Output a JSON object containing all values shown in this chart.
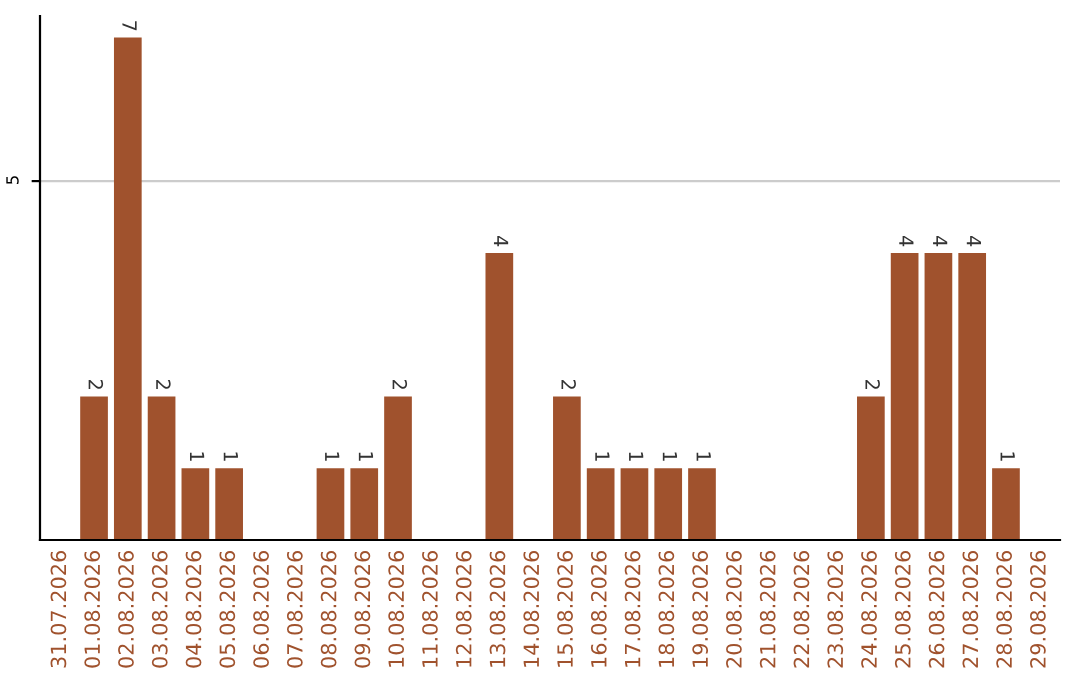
{
  "chart_data": {
    "type": "bar",
    "categories": [
      "31.07.2026",
      "01.08.2026",
      "02.08.2026",
      "03.08.2026",
      "04.08.2026",
      "05.08.2026",
      "06.08.2026",
      "07.08.2026",
      "08.08.2026",
      "09.08.2026",
      "10.08.2026",
      "11.08.2026",
      "12.08.2026",
      "13.08.2026",
      "14.08.2026",
      "15.08.2026",
      "16.08.2026",
      "17.08.2026",
      "18.08.2026",
      "19.08.2026",
      "20.08.2026",
      "21.08.2026",
      "22.08.2026",
      "23.08.2026",
      "24.08.2026",
      "25.08.2026",
      "26.08.2026",
      "27.08.2026",
      "28.08.2026",
      "29.08.2026"
    ],
    "values": [
      0,
      2,
      7,
      2,
      1,
      1,
      0,
      0,
      1,
      1,
      2,
      0,
      0,
      4,
      0,
      2,
      1,
      1,
      1,
      1,
      0,
      0,
      0,
      0,
      2,
      4,
      4,
      4,
      1,
      0
    ],
    "value_labels": [
      null,
      "2",
      "7",
      "2",
      "1",
      "1",
      null,
      null,
      "1",
      "1",
      "2",
      null,
      null,
      "4",
      null,
      "2",
      "1",
      "1",
      "1",
      "1",
      null,
      null,
      null,
      null,
      "2",
      "4",
      "4",
      "4",
      "1",
      null
    ],
    "color": "#a0522d",
    "ylim": [
      0,
      7.3
    ],
    "yticks": [
      5
    ],
    "grid": "y"
  }
}
